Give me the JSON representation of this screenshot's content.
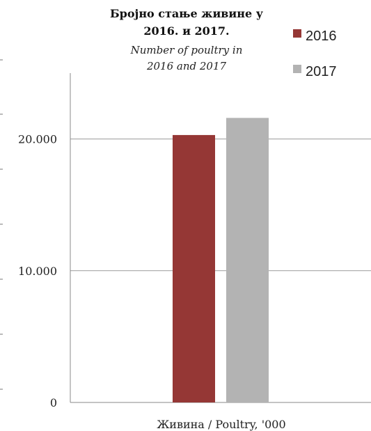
{
  "chart_data": {
    "type": "bar",
    "title": "Бројно стање живине у 2016. и 2017.",
    "title_lines": [
      "Бројно стање живине у",
      "2016. и 2017."
    ],
    "subtitle": "Number of poultry in 2016 and 2017",
    "subtitle_lines": [
      "Number of poultry in",
      "2016 and 2017"
    ],
    "categories": [
      "Живина / Poultry, '000"
    ],
    "series": [
      {
        "name": "2016",
        "values": [
          20300
        ],
        "color": "#953735"
      },
      {
        "name": "2017",
        "values": [
          21600
        ],
        "color": "#b3b3b3"
      }
    ],
    "ylim": [
      0,
      25000
    ],
    "yticks": [
      0,
      10000,
      20000
    ],
    "ytick_labels": [
      "0",
      "10.000",
      "20.000"
    ],
    "grid": true,
    "legend_position": "top-right",
    "xlabel": "",
    "ylabel": ""
  }
}
